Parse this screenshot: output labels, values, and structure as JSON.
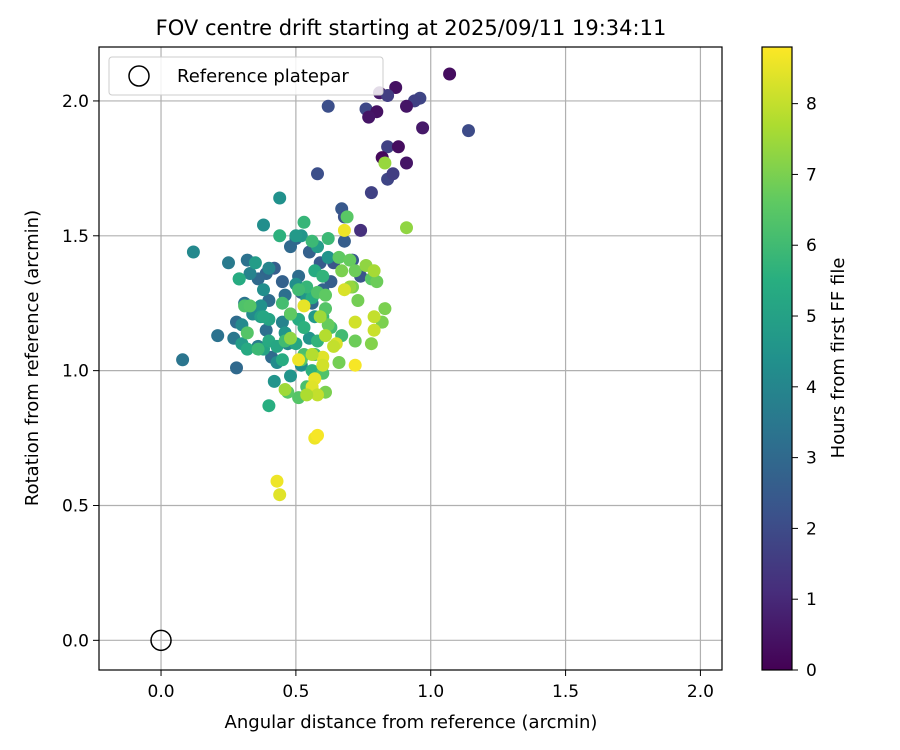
{
  "chart_data": {
    "type": "scatter",
    "title": "FOV centre drift starting at 2025/09/11 19:34:11",
    "xlabel": "Angular distance from reference (arcmin)",
    "ylabel": "Rotation from reference (arcmin)",
    "xlim": [
      -0.23,
      2.08
    ],
    "ylim": [
      -0.11,
      2.2
    ],
    "xticks": [
      "0.0",
      "0.5",
      "1.0",
      "1.5",
      "2.0"
    ],
    "yticks": [
      "0.0",
      "0.5",
      "1.0",
      "1.5",
      "2.0"
    ],
    "grid": true,
    "legend": {
      "placement": "top-left",
      "entries": [
        "Reference platepar"
      ]
    },
    "reference_point": {
      "x": 0.0,
      "y": 0.0,
      "marker": "open-circle"
    },
    "colorbar": {
      "label": "Hours from first FF file",
      "min": 0,
      "max": 8.8,
      "ticks": [
        "0",
        "1",
        "2",
        "3",
        "4",
        "5",
        "6",
        "7",
        "8"
      ],
      "colormap": "viridis"
    },
    "series": [
      {
        "points": [
          [
            1.07,
            2.1,
            0.3
          ],
          [
            0.87,
            2.05,
            0.4
          ],
          [
            0.81,
            2.03,
            0.6
          ],
          [
            0.84,
            2.02,
            1.6
          ],
          [
            0.96,
            2.01,
            1.8
          ],
          [
            0.94,
            2.0,
            1.7
          ],
          [
            0.62,
            1.98,
            2.1
          ],
          [
            0.76,
            1.97,
            1.9
          ],
          [
            0.91,
            1.98,
            0.5
          ],
          [
            0.8,
            1.96,
            0.4
          ],
          [
            0.77,
            1.94,
            0.5
          ],
          [
            0.97,
            1.9,
            0.6
          ],
          [
            1.14,
            1.89,
            2.0
          ],
          [
            0.84,
            1.83,
            1.7
          ],
          [
            0.88,
            1.83,
            0.3
          ],
          [
            0.82,
            1.79,
            0.2
          ],
          [
            0.91,
            1.77,
            0.5
          ],
          [
            0.84,
            1.71,
            1.8
          ],
          [
            0.86,
            1.73,
            1.6
          ],
          [
            0.58,
            1.73,
            2.1
          ],
          [
            0.78,
            1.66,
            1.7
          ],
          [
            0.67,
            1.6,
            2.4
          ],
          [
            0.68,
            1.57,
            2.2
          ],
          [
            0.74,
            1.52,
            1.2
          ],
          [
            0.68,
            1.48,
            2.6
          ],
          [
            0.5,
            1.49,
            2.9
          ],
          [
            0.48,
            1.46,
            3.0
          ],
          [
            0.55,
            1.44,
            2.7
          ],
          [
            0.64,
            1.4,
            2.3
          ],
          [
            0.71,
            1.41,
            2.4
          ],
          [
            0.59,
            1.4,
            2.5
          ],
          [
            0.42,
            1.38,
            2.6
          ],
          [
            0.39,
            1.36,
            2.9
          ],
          [
            0.51,
            1.35,
            3.1
          ],
          [
            0.45,
            1.33,
            2.7
          ],
          [
            0.36,
            1.34,
            3.0
          ],
          [
            0.63,
            1.33,
            2.6
          ],
          [
            0.74,
            1.35,
            2.3
          ],
          [
            0.6,
            1.3,
            2.8
          ],
          [
            0.52,
            1.29,
            2.9
          ],
          [
            0.46,
            1.28,
            3.2
          ],
          [
            0.32,
            1.41,
            3.3
          ],
          [
            0.25,
            1.4,
            3.6
          ],
          [
            0.4,
            1.26,
            3.1
          ],
          [
            0.56,
            1.25,
            3.0
          ],
          [
            0.48,
            1.21,
            3.3
          ],
          [
            0.31,
            1.25,
            3.4
          ],
          [
            0.28,
            1.18,
            3.1
          ],
          [
            0.39,
            1.15,
            3.2
          ],
          [
            0.21,
            1.13,
            3.3
          ],
          [
            0.27,
            1.12,
            3.5
          ],
          [
            0.41,
            1.05,
            3.1
          ],
          [
            0.08,
            1.04,
            3.4
          ],
          [
            0.28,
            1.01,
            3.0
          ],
          [
            0.36,
            1.09,
            3.7
          ],
          [
            0.12,
            1.44,
            4.1
          ],
          [
            0.38,
            1.54,
            4.3
          ],
          [
            0.44,
            1.64,
            4.4
          ],
          [
            0.4,
            1.38,
            4.0
          ],
          [
            0.33,
            1.36,
            3.9
          ],
          [
            0.45,
            1.18,
            3.9
          ],
          [
            0.34,
            1.21,
            4.2
          ],
          [
            0.3,
            1.17,
            4.1
          ],
          [
            0.37,
            1.24,
            4.4
          ],
          [
            0.38,
            1.3,
            4.3
          ],
          [
            0.46,
            1.14,
            4.6
          ],
          [
            0.47,
            1.1,
            4.0
          ],
          [
            0.43,
            1.03,
            4.2
          ],
          [
            0.42,
            0.96,
            4.5
          ],
          [
            0.48,
            0.98,
            4.5
          ],
          [
            0.52,
            1.02,
            4.3
          ],
          [
            0.55,
            1.12,
            4.5
          ],
          [
            0.57,
            1.2,
            4.7
          ],
          [
            0.54,
            1.27,
            4.6
          ],
          [
            0.5,
            1.32,
            4.3
          ],
          [
            0.62,
            1.42,
            4.5
          ],
          [
            0.58,
            1.46,
            4.8
          ],
          [
            0.52,
            1.5,
            4.6
          ],
          [
            0.5,
            1.5,
            4.7
          ],
          [
            0.35,
            1.4,
            4.8
          ],
          [
            0.37,
            1.2,
            4.9
          ],
          [
            0.29,
            1.34,
            5.0
          ],
          [
            0.3,
            1.1,
            4.8
          ],
          [
            0.4,
            1.19,
            5.1
          ],
          [
            0.38,
            1.08,
            5.1
          ],
          [
            0.4,
            1.11,
            5.3
          ],
          [
            0.43,
            1.09,
            5.2
          ],
          [
            0.32,
            1.08,
            5.3
          ],
          [
            0.45,
            1.04,
            5.4
          ],
          [
            0.5,
            1.1,
            5.2
          ],
          [
            0.51,
            1.19,
            5.4
          ],
          [
            0.53,
            1.16,
            5.6
          ],
          [
            0.56,
            1.27,
            5.5
          ],
          [
            0.57,
            1.37,
            5.4
          ],
          [
            0.53,
            1.55,
            5.8
          ],
          [
            0.56,
            1.48,
            5.9
          ],
          [
            0.62,
            1.49,
            5.9
          ],
          [
            0.6,
            1.35,
            5.7
          ],
          [
            0.54,
            1.31,
            5.8
          ],
          [
            0.51,
            1.3,
            6.0
          ],
          [
            0.6,
            1.2,
            5.9
          ],
          [
            0.63,
            1.16,
            6.1
          ],
          [
            0.67,
            1.13,
            6.0
          ],
          [
            0.58,
            1.11,
            5.7
          ],
          [
            0.57,
            1.06,
            6.1
          ],
          [
            0.53,
            1.06,
            6.2
          ],
          [
            0.56,
            1.0,
            5.6
          ],
          [
            0.6,
            0.99,
            6.3
          ],
          [
            0.54,
            0.94,
            6.2
          ],
          [
            0.51,
            0.9,
            6.4
          ],
          [
            0.47,
            0.92,
            6.5
          ],
          [
            0.4,
            0.87,
            5.5
          ],
          [
            0.46,
            1.11,
            6.0
          ],
          [
            0.32,
            1.14,
            6.4
          ],
          [
            0.29,
            1.34,
            5.4
          ],
          [
            0.31,
            1.24,
            6.3
          ],
          [
            0.33,
            1.24,
            6.4
          ],
          [
            0.36,
            1.08,
            5.9
          ],
          [
            0.38,
            1.2,
            5.2
          ],
          [
            0.44,
            1.5,
            5.6
          ],
          [
            0.45,
            1.25,
            6.1
          ],
          [
            0.48,
            1.21,
            6.6
          ],
          [
            0.52,
            1.04,
            6.5
          ],
          [
            0.58,
            1.29,
            6.3
          ],
          [
            0.61,
            1.28,
            6.6
          ],
          [
            0.61,
            1.23,
            6.4
          ],
          [
            0.62,
            1.17,
            6.7
          ],
          [
            0.66,
            1.42,
            6.6
          ],
          [
            0.69,
            1.57,
            6.5
          ],
          [
            0.7,
            1.41,
            6.7
          ],
          [
            0.72,
            1.37,
            6.8
          ],
          [
            0.73,
            1.26,
            6.9
          ],
          [
            0.67,
            1.37,
            7.0
          ],
          [
            0.71,
            1.31,
            7.0
          ],
          [
            0.72,
            1.11,
            6.8
          ],
          [
            0.66,
            1.03,
            6.9
          ],
          [
            0.61,
            0.92,
            7.0
          ],
          [
            0.78,
            1.34,
            6.5
          ],
          [
            0.8,
            1.33,
            6.8
          ],
          [
            0.82,
            1.18,
            7.0
          ],
          [
            0.83,
            1.23,
            7.0
          ],
          [
            0.78,
            1.1,
            7.1
          ],
          [
            0.76,
            1.39,
            7.3
          ],
          [
            0.7,
            1.31,
            7.4
          ],
          [
            0.79,
            1.37,
            7.6
          ],
          [
            0.83,
            1.77,
            7.4
          ],
          [
            0.91,
            1.53,
            7.3
          ],
          [
            0.68,
            1.52,
            8.6
          ],
          [
            0.68,
            1.3,
            8.3
          ],
          [
            0.72,
            1.18,
            8.2
          ],
          [
            0.79,
            1.15,
            8.1
          ],
          [
            0.79,
            1.2,
            8.0
          ],
          [
            0.65,
            1.1,
            8.3
          ],
          [
            0.6,
            1.05,
            8.4
          ],
          [
            0.56,
            1.06,
            7.8
          ],
          [
            0.53,
            1.24,
            8.5
          ],
          [
            0.51,
            1.04,
            8.6
          ],
          [
            0.6,
            1.02,
            8.2
          ],
          [
            0.57,
            0.97,
            8.5
          ],
          [
            0.56,
            0.94,
            8.4
          ],
          [
            0.58,
            0.91,
            8.0
          ],
          [
            0.72,
            1.02,
            8.7
          ],
          [
            0.54,
            0.91,
            7.7
          ],
          [
            0.57,
            0.75,
            8.6
          ],
          [
            0.58,
            0.76,
            8.7
          ],
          [
            0.43,
            0.59,
            8.6
          ],
          [
            0.44,
            0.54,
            8.4
          ],
          [
            0.46,
            0.93,
            7.5
          ],
          [
            0.48,
            1.12,
            7.3
          ],
          [
            0.59,
            1.2,
            7.5
          ],
          [
            0.61,
            1.13,
            7.8
          ],
          [
            0.64,
            1.09,
            8.0
          ]
        ]
      }
    ]
  }
}
